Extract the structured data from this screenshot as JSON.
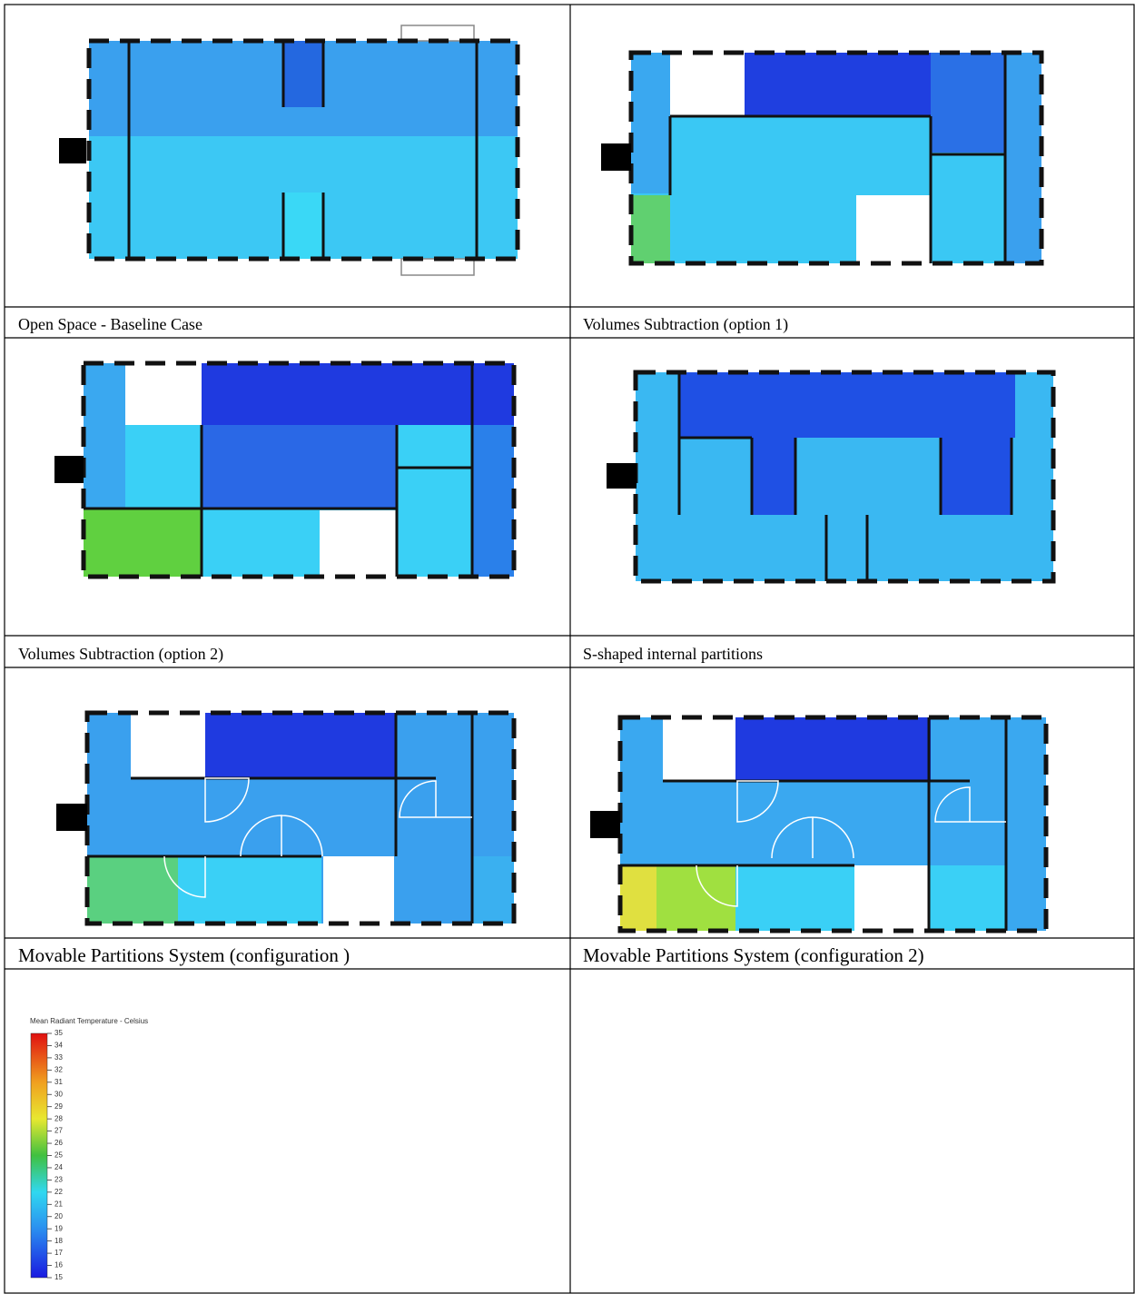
{
  "cells": [
    {
      "caption": "Open Space - Baseline Case"
    },
    {
      "caption": "Volumes Subtraction (option 1)"
    },
    {
      "caption": "Volumes Subtraction (option 2)"
    },
    {
      "caption": "S-shaped internal partitions"
    },
    {
      "caption": "Movable Partitions System (configuration )"
    },
    {
      "caption": "Movable Partitions System (configuration 2)"
    }
  ],
  "legend": {
    "title": "Mean Radiant Temperature - Celsius",
    "lim": [
      15,
      35
    ],
    "ticks": [
      15,
      16,
      17,
      18,
      19,
      20,
      21,
      22,
      23,
      24,
      25,
      26,
      27,
      28,
      29,
      30,
      31,
      32,
      33,
      34,
      35
    ]
  }
}
